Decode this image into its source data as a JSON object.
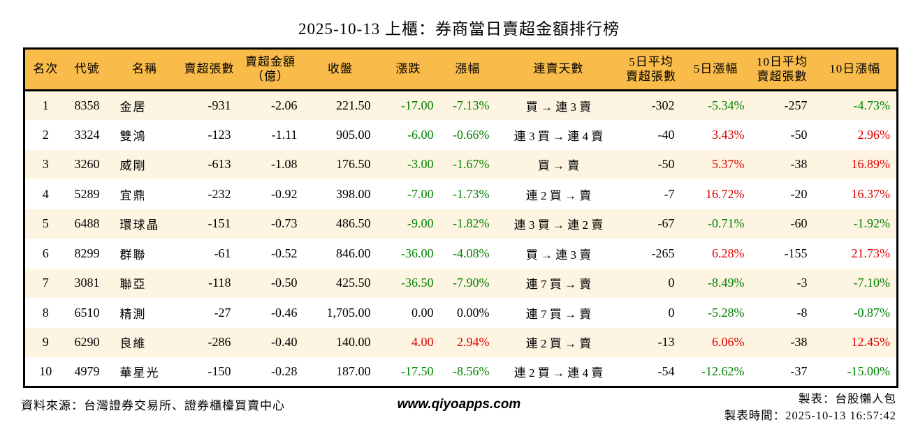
{
  "colors": {
    "up_red": "#e00000",
    "down_green": "#008000",
    "header_bg": "#f9bb4a",
    "row_stripe": "#fdf5e1",
    "border": "#000000"
  },
  "title": "2025-10-13 上櫃：券商當日賣超金額排行榜",
  "table": {
    "columns": [
      "名次",
      "代號",
      "名稱",
      "賣超張數",
      "賣超金額\n（億）",
      "收盤",
      "漲跌",
      "漲幅",
      "連賣天數",
      "5日平均\n賣超張數",
      "5日漲幅",
      "10日平均\n賣超張數",
      "10日漲幅"
    ],
    "rows": [
      {
        "rank": "1",
        "code": "8358",
        "name": "金居",
        "sell_vol": "-931",
        "sell_amt": "-2.06",
        "close": "221.50",
        "chg": "-17.00",
        "chg_pct": "-7.13%",
        "streak": "買 → 連 3 賣",
        "avg5": "-302",
        "pct5": "-5.34%",
        "avg10": "-257",
        "pct10": "-4.73%"
      },
      {
        "rank": "2",
        "code": "3324",
        "name": "雙鴻",
        "sell_vol": "-123",
        "sell_amt": "-1.11",
        "close": "905.00",
        "chg": "-6.00",
        "chg_pct": "-0.66%",
        "streak": "連 3 買 → 連 4 賣",
        "avg5": "-40",
        "pct5": "3.43%",
        "avg10": "-50",
        "pct10": "2.96%"
      },
      {
        "rank": "3",
        "code": "3260",
        "name": "威剛",
        "sell_vol": "-613",
        "sell_amt": "-1.08",
        "close": "176.50",
        "chg": "-3.00",
        "chg_pct": "-1.67%",
        "streak": "買 → 賣",
        "avg5": "-50",
        "pct5": "5.37%",
        "avg10": "-38",
        "pct10": "16.89%"
      },
      {
        "rank": "4",
        "code": "5289",
        "name": "宜鼎",
        "sell_vol": "-232",
        "sell_amt": "-0.92",
        "close": "398.00",
        "chg": "-7.00",
        "chg_pct": "-1.73%",
        "streak": "連 2 買 → 賣",
        "avg5": "-7",
        "pct5": "16.72%",
        "avg10": "-20",
        "pct10": "16.37%"
      },
      {
        "rank": "5",
        "code": "6488",
        "name": "環球晶",
        "sell_vol": "-151",
        "sell_amt": "-0.73",
        "close": "486.50",
        "chg": "-9.00",
        "chg_pct": "-1.82%",
        "streak": "連 3 買 → 連 2 賣",
        "avg5": "-67",
        "pct5": "-0.71%",
        "avg10": "-60",
        "pct10": "-1.92%"
      },
      {
        "rank": "6",
        "code": "8299",
        "name": "群聯",
        "sell_vol": "-61",
        "sell_amt": "-0.52",
        "close": "846.00",
        "chg": "-36.00",
        "chg_pct": "-4.08%",
        "streak": "買 → 連 3 賣",
        "avg5": "-265",
        "pct5": "6.28%",
        "avg10": "-155",
        "pct10": "21.73%"
      },
      {
        "rank": "7",
        "code": "3081",
        "name": "聯亞",
        "sell_vol": "-118",
        "sell_amt": "-0.50",
        "close": "425.50",
        "chg": "-36.50",
        "chg_pct": "-7.90%",
        "streak": "連 7 買 → 賣",
        "avg5": "0",
        "pct5": "-8.49%",
        "avg10": "-3",
        "pct10": "-7.10%"
      },
      {
        "rank": "8",
        "code": "6510",
        "name": "精測",
        "sell_vol": "-27",
        "sell_amt": "-0.46",
        "close": "1,705.00",
        "chg": "0.00",
        "chg_pct": "0.00%",
        "streak": "連 7 買 → 賣",
        "avg5": "0",
        "pct5": "-5.28%",
        "avg10": "-8",
        "pct10": "-0.87%"
      },
      {
        "rank": "9",
        "code": "6290",
        "name": "良維",
        "sell_vol": "-286",
        "sell_amt": "-0.40",
        "close": "140.00",
        "chg": "4.00",
        "chg_pct": "2.94%",
        "streak": "連 2 買 → 賣",
        "avg5": "-13",
        "pct5": "6.06%",
        "avg10": "-38",
        "pct10": "12.45%"
      },
      {
        "rank": "10",
        "code": "4979",
        "name": "華星光",
        "sell_vol": "-150",
        "sell_amt": "-0.28",
        "close": "187.00",
        "chg": "-17.50",
        "chg_pct": "-8.56%",
        "streak": "連 2 買 → 連 4 賣",
        "avg5": "-54",
        "pct5": "-12.62%",
        "avg10": "-37",
        "pct10": "-15.00%"
      }
    ]
  },
  "footer": {
    "source": "資料來源：台灣證券交易所、證券櫃檯買賣中心",
    "website": "www.qiyoapps.com",
    "maker": "製表：台股懶人包",
    "made_time": "製表時間：2025-10-13 16:57:42"
  }
}
